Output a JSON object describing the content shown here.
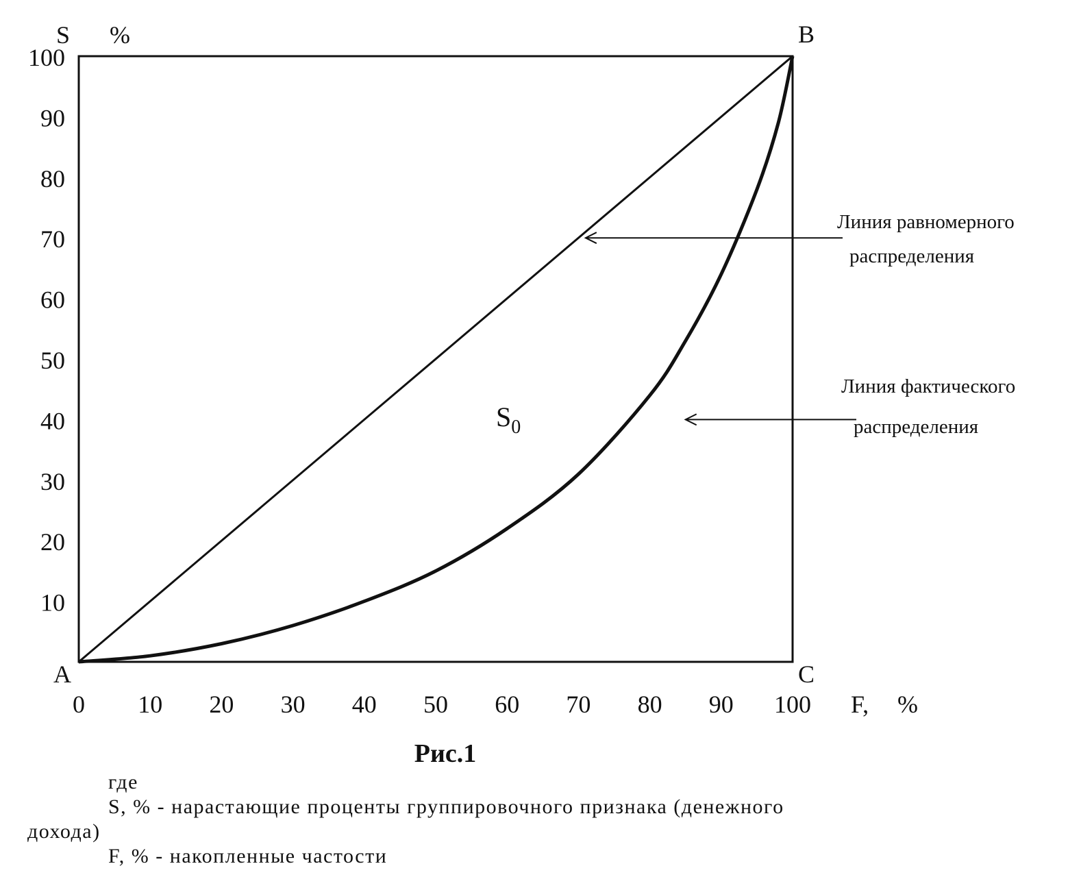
{
  "chart_data": {
    "type": "line",
    "ylabel": "S",
    "ylabel_unit": "%",
    "xlabel": "F,",
    "xlabel_unit": "%",
    "xlim": [
      0,
      100
    ],
    "ylim": [
      0,
      100
    ],
    "x_ticks": [
      "0",
      "10",
      "20",
      "30",
      "40",
      "50",
      "60",
      "70",
      "80",
      "90",
      "100"
    ],
    "y_ticks": [
      "10",
      "20",
      "30",
      "40",
      "50",
      "60",
      "70",
      "80",
      "90",
      "100"
    ],
    "grid": false,
    "corners": {
      "A": "A",
      "B": "B",
      "C": "C"
    },
    "area_label": {
      "main": "S",
      "sub": "0"
    },
    "series": [
      {
        "x": [
          0,
          100
        ],
        "y": [
          0,
          100
        ]
      },
      {
        "x": [
          0,
          10,
          20,
          30,
          40,
          50,
          60,
          70,
          80,
          85,
          90,
          95,
          98,
          100
        ],
        "y": [
          0,
          1,
          3,
          6,
          10,
          15,
          22,
          31,
          44,
          53,
          64,
          78,
          89,
          100
        ]
      }
    ],
    "annotations": [
      {
        "line1": "Линия равномерного",
        "line2": "распределения",
        "arrow_to": [
          71,
          70
        ]
      },
      {
        "line1": "Линия фактического",
        "line2": "распределения",
        "arrow_to": [
          85,
          40
        ]
      }
    ]
  },
  "caption": "Рис.1",
  "legend": {
    "intro": "где",
    "s_line_1": "S, %  - нарастающие проценты группировочного признака (денежного",
    "s_line_2": "дохода)",
    "f_line": "F, %  - накопленные частости"
  }
}
